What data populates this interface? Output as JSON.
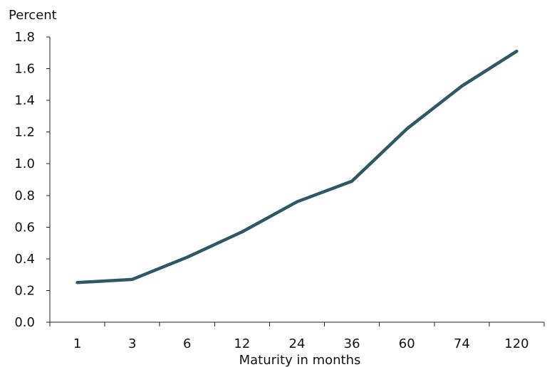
{
  "chart_data": {
    "type": "line",
    "xlabel": "Maturity in months",
    "ylabel": "Percent",
    "categories": [
      "1",
      "3",
      "6",
      "12",
      "24",
      "36",
      "60",
      "74",
      "120"
    ],
    "series": [
      {
        "values": [
          0.25,
          0.27,
          0.41,
          0.57,
          0.76,
          0.89,
          1.22,
          1.49,
          1.71
        ]
      }
    ],
    "ylim": [
      0.0,
      1.8
    ],
    "yticks": [
      "0.0",
      "0.2",
      "0.4",
      "0.6",
      "0.8",
      "1.0",
      "1.2",
      "1.4",
      "1.6",
      "1.8"
    ],
    "grid": false,
    "legend": "none",
    "line_color": "#2f5866"
  }
}
